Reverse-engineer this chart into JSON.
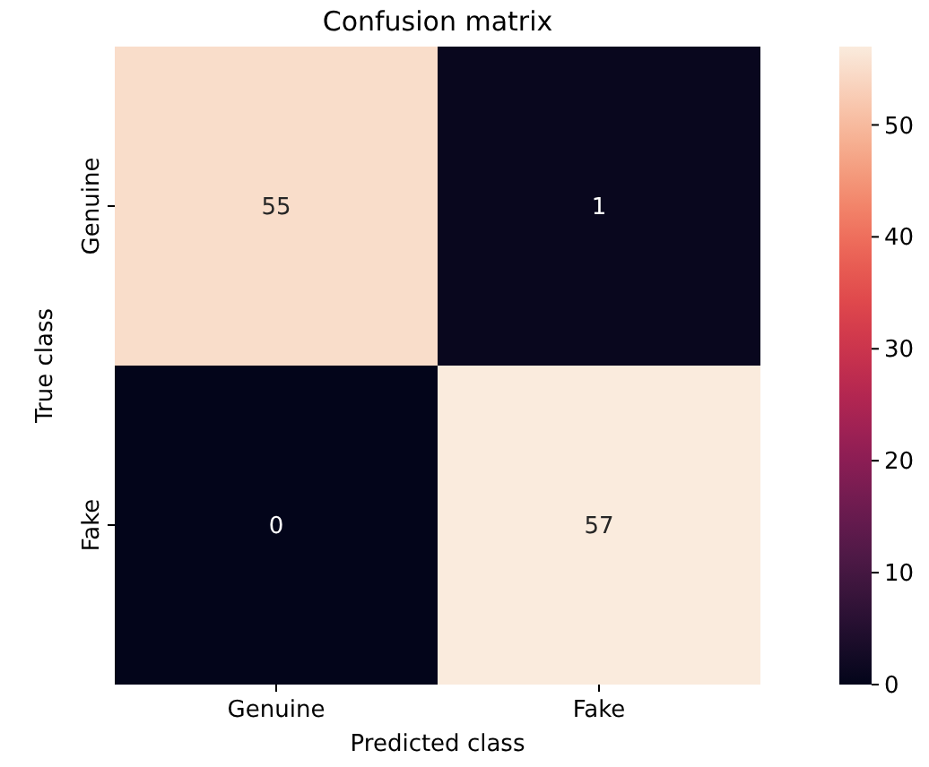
{
  "chart_data": {
    "type": "heatmap",
    "title": "Confusion matrix",
    "xlabel": "Predicted class",
    "ylabel": "True class",
    "categories": [
      "Genuine",
      "Fake"
    ],
    "y_categories": [
      "Genuine",
      "Fake"
    ],
    "cells": [
      [
        55,
        1
      ],
      [
        0,
        57
      ]
    ],
    "clim": [
      0,
      57
    ],
    "cticks": [
      0,
      10,
      20,
      30,
      40,
      50
    ],
    "data_labels": true
  }
}
